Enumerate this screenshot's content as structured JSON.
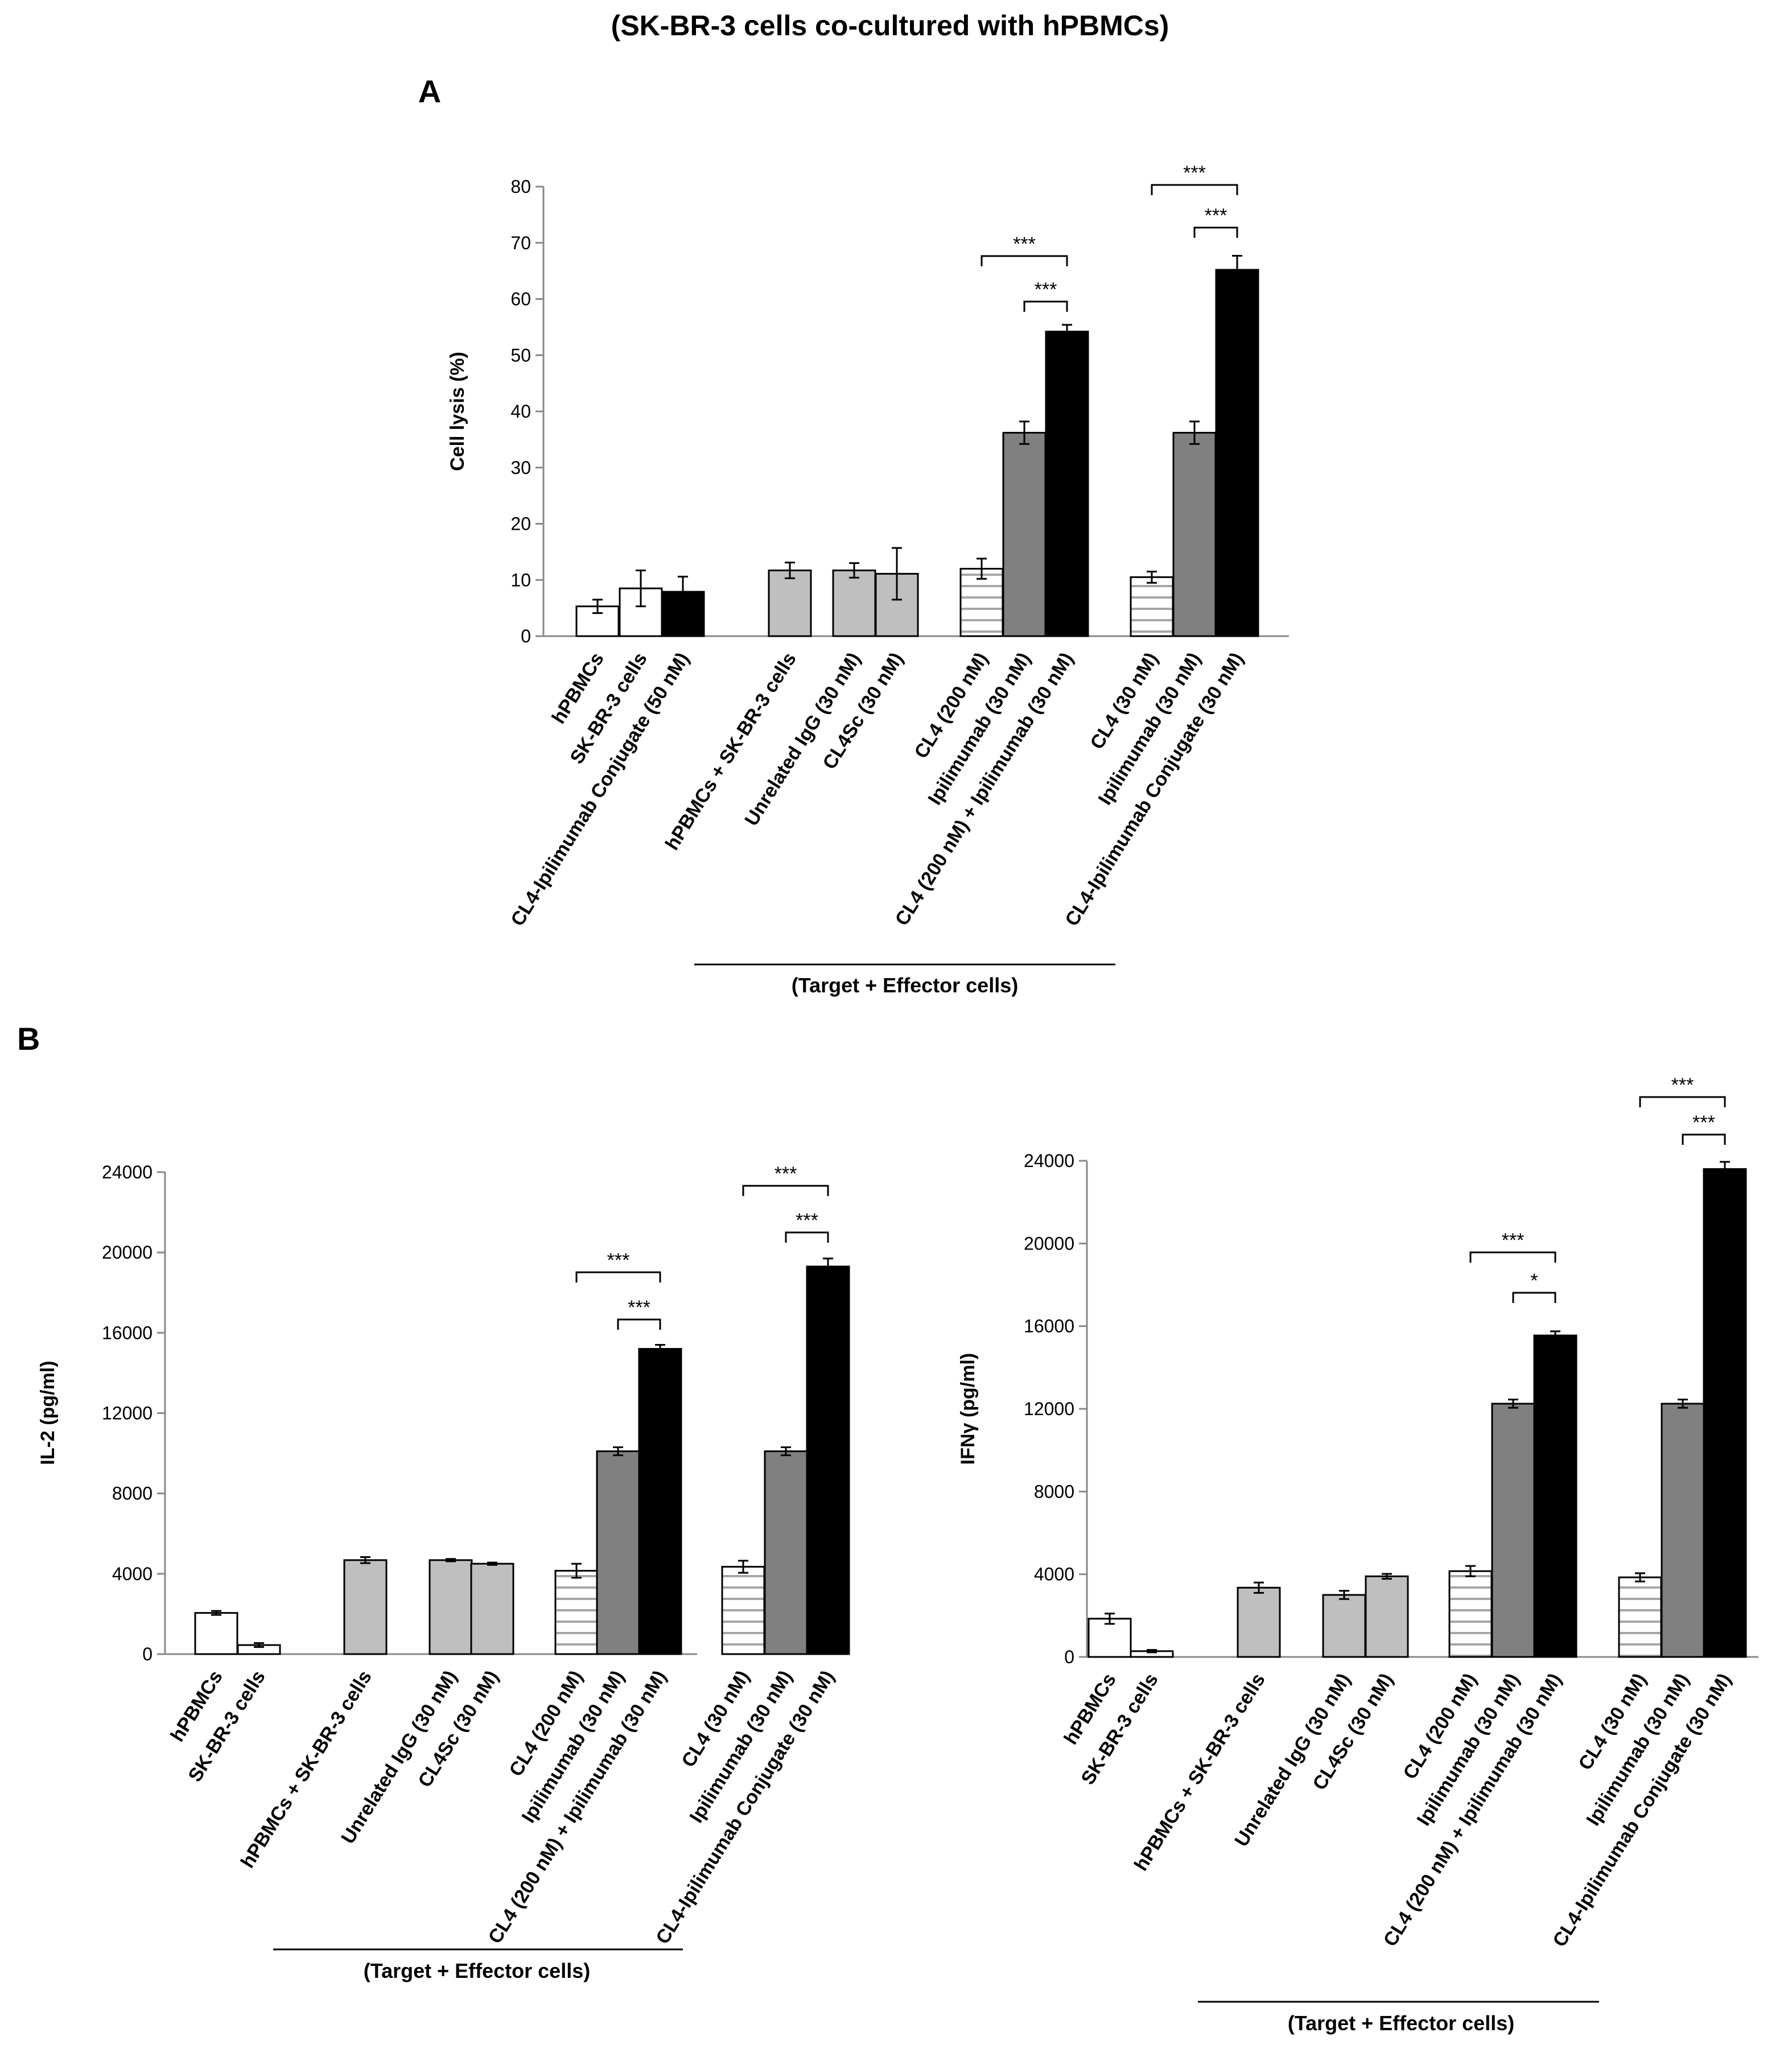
{
  "figure_title": "(SK-BR-3 cells co-cultured with hPBMCs)",
  "panel_labels": {
    "A": "A",
    "B": "B"
  },
  "colors": {
    "white": "#ffffff",
    "light_gray": "#bfbfbf",
    "dark_gray": "#808080",
    "black": "#000000",
    "stripe": "#a6a6a6"
  },
  "chart_data": [
    {
      "type": "bar",
      "panel": "A",
      "ylabel": "Cell lysis (%)",
      "ylim": [
        0,
        80
      ],
      "yticks": [
        0,
        10,
        20,
        30,
        40,
        50,
        60,
        70,
        80
      ],
      "group_label": "(Target + Effector cells)",
      "bars": [
        {
          "label": "hPBMCs",
          "value": 5.3,
          "error": 1.2,
          "fill": "white"
        },
        {
          "label": "SK-BR-3 cells",
          "value": 8.5,
          "error": 3.2,
          "fill": "white"
        },
        {
          "label": "CL4-Ipilimumab Conjugate (50 nM)",
          "value": 7.9,
          "error": 2.7,
          "fill": "black"
        },
        {
          "label": "hPBMCs + SK-BR-3 cells",
          "value": 11.7,
          "error": 1.4,
          "fill": "light_gray"
        },
        {
          "label": "Unrelated IgG (30 nM)",
          "value": 11.7,
          "error": 1.3,
          "fill": "light_gray"
        },
        {
          "label": "CL4Sc (30 nM)",
          "value": 11.1,
          "error": 4.6,
          "fill": "light_gray"
        },
        {
          "label": "CL4 (200 nM)",
          "value": 12.0,
          "error": 1.8,
          "fill": "stripe"
        },
        {
          "label": "Ipilimumab (30 nM)",
          "value": 36.2,
          "error": 2.0,
          "fill": "dark_gray"
        },
        {
          "label": "CL4 (200 nM) + Ipilimumab (30 nM)",
          "value": 54.2,
          "error": 1.2,
          "fill": "black"
        },
        {
          "label": "CL4 (30 nM)",
          "value": 10.5,
          "error": 1.0,
          "fill": "stripe"
        },
        {
          "label": "Ipilimumab (30 nM)",
          "value": 36.2,
          "error": 2.0,
          "fill": "dark_gray"
        },
        {
          "label": "CL4-Ipilimumab Conjugate (30 nM)",
          "value": 65.2,
          "error": 2.5,
          "fill": "black"
        }
      ],
      "significance": [
        {
          "from": 7,
          "to": 8,
          "text": "***"
        },
        {
          "from": 6,
          "to": 8,
          "text": "***"
        },
        {
          "from": 10,
          "to": 11,
          "text": "***"
        },
        {
          "from": 9,
          "to": 11,
          "text": "***"
        }
      ]
    },
    {
      "type": "bar",
      "panel": "B-left",
      "ylabel": "IL-2 (pg/ml)",
      "ylim": [
        0,
        24000
      ],
      "yticks": [
        0,
        4000,
        8000,
        12000,
        16000,
        20000,
        24000
      ],
      "group_label": "(Target + Effector cells)",
      "bars": [
        {
          "label": "hPBMCs",
          "value": 2050,
          "error": 100,
          "fill": "white"
        },
        {
          "label": "SK-BR-3 cells",
          "value": 450,
          "error": 100,
          "fill": "white"
        },
        {
          "label": "hPBMCs + SK-BR-3 cells",
          "value": 4680,
          "error": 150,
          "fill": "light_gray"
        },
        {
          "label": "Unrelated IgG (30 nM)",
          "value": 4680,
          "error": 60,
          "fill": "light_gray"
        },
        {
          "label": "CL4Sc (30 nM)",
          "value": 4500,
          "error": 60,
          "fill": "light_gray"
        },
        {
          "label": "CL4 (200 nM)",
          "value": 4150,
          "error": 350,
          "fill": "stripe"
        },
        {
          "label": "Ipilimumab (30 nM)",
          "value": 10100,
          "error": 200,
          "fill": "dark_gray"
        },
        {
          "label": "CL4 (200 nM) + Ipilimumab (30 nM)",
          "value": 15200,
          "error": 200,
          "fill": "black"
        },
        {
          "label": "CL4 (30 nM)",
          "value": 4350,
          "error": 300,
          "fill": "stripe"
        },
        {
          "label": "Ipilimumab (30 nM)",
          "value": 10100,
          "error": 200,
          "fill": "dark_gray"
        },
        {
          "label": "CL4-Ipilimumab Conjugate (30 nM)",
          "value": 19300,
          "error": 400,
          "fill": "black"
        }
      ],
      "significance": [
        {
          "from": 6,
          "to": 7,
          "text": "***"
        },
        {
          "from": 5,
          "to": 7,
          "text": "***"
        },
        {
          "from": 9,
          "to": 10,
          "text": "***"
        },
        {
          "from": 8,
          "to": 10,
          "text": "***"
        }
      ]
    },
    {
      "type": "bar",
      "panel": "B-right",
      "ylabel": "IFNγ (pg/ml)",
      "ylim": [
        0,
        24000
      ],
      "yticks": [
        0,
        4000,
        8000,
        12000,
        16000,
        20000,
        24000
      ],
      "group_label": "(Target + Effector cells)",
      "bars": [
        {
          "label": "hPBMCs",
          "value": 1850,
          "error": 250,
          "fill": "white"
        },
        {
          "label": "SK-BR-3 cells",
          "value": 280,
          "error": 60,
          "fill": "white"
        },
        {
          "label": "hPBMCs + SK-BR-3 cells",
          "value": 3350,
          "error": 250,
          "fill": "light_gray"
        },
        {
          "label": "Unrelated IgG (30 nM)",
          "value": 3000,
          "error": 200,
          "fill": "light_gray"
        },
        {
          "label": "CL4Sc (30 nM)",
          "value": 3900,
          "error": 120,
          "fill": "light_gray"
        },
        {
          "label": "CL4 (200 nM)",
          "value": 4150,
          "error": 250,
          "fill": "stripe"
        },
        {
          "label": "Ipilimumab (30 nM)",
          "value": 12250,
          "error": 200,
          "fill": "dark_gray"
        },
        {
          "label": "CL4 (200 nM) + Ipilimumab (30 nM)",
          "value": 15550,
          "error": 200,
          "fill": "black"
        },
        {
          "label": "CL4 (30 nM)",
          "value": 3850,
          "error": 200,
          "fill": "stripe"
        },
        {
          "label": "Ipilimumab (30 nM)",
          "value": 12250,
          "error": 200,
          "fill": "dark_gray"
        },
        {
          "label": "CL4-Ipilimumab Conjugate (30 nM)",
          "value": 23600,
          "error": 350,
          "fill": "black"
        }
      ],
      "significance": [
        {
          "from": 6,
          "to": 7,
          "text": "*"
        },
        {
          "from": 5,
          "to": 7,
          "text": "***"
        },
        {
          "from": 9,
          "to": 10,
          "text": "***"
        },
        {
          "from": 8,
          "to": 10,
          "text": "***"
        }
      ]
    }
  ]
}
